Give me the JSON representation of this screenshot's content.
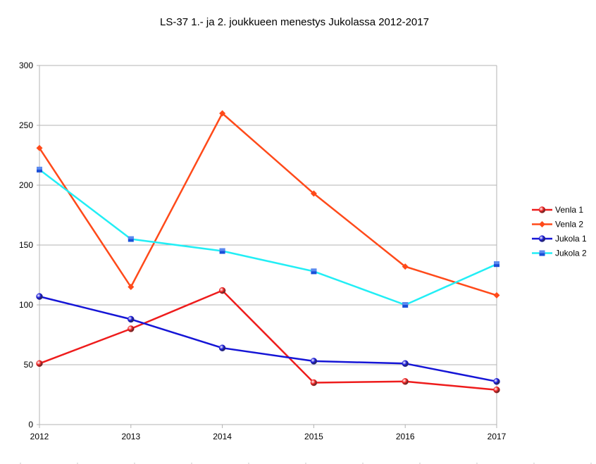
{
  "chart_data": {
    "type": "line",
    "title": "LS-37 1.- ja 2. joukkueen menestys Jukolassa 2012-2017",
    "xlabel": "",
    "ylabel": "",
    "x": [
      "2012",
      "2013",
      "2014",
      "2015",
      "2016",
      "2017"
    ],
    "yticks": [
      "0",
      "50",
      "100",
      "150",
      "200",
      "250",
      "300"
    ],
    "ylim": [
      0,
      300
    ],
    "grid": true,
    "legend": "right",
    "series": [
      {
        "name": "Venla 1",
        "values": [
          51,
          80,
          112,
          35,
          36,
          29
        ],
        "color": "#ee1c1c",
        "marker": "sphere"
      },
      {
        "name": "Venla 2",
        "values": [
          231,
          115,
          260,
          193,
          132,
          108
        ],
        "color": "#ff4a1a",
        "marker": "diamond"
      },
      {
        "name": "Jukola 1",
        "values": [
          107,
          88,
          64,
          53,
          51,
          36
        ],
        "color": "#1515d6",
        "marker": "sphere"
      },
      {
        "name": "Jukola 2",
        "values": [
          213,
          155,
          145,
          128,
          100,
          134
        ],
        "color": "#22eef5",
        "marker": "square"
      }
    ]
  }
}
